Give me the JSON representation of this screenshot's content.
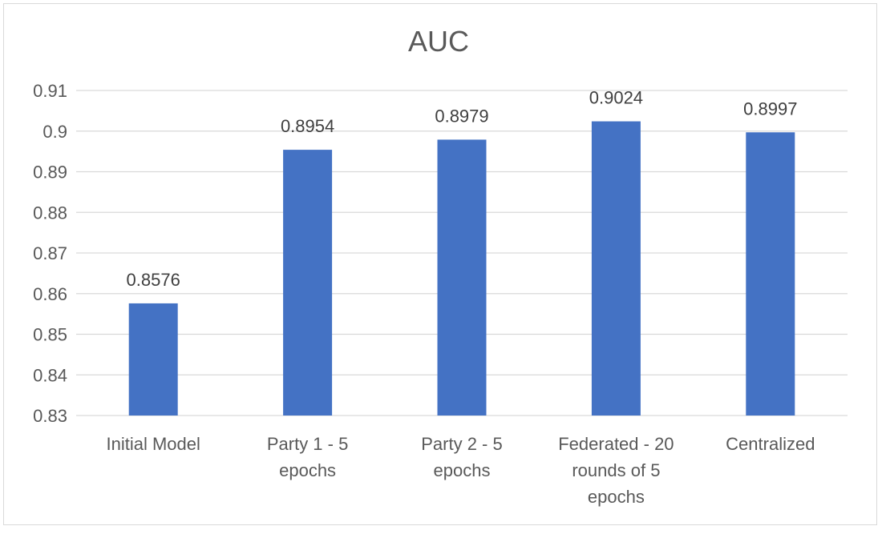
{
  "chart_data": {
    "type": "bar",
    "title": "AUC",
    "xlabel": "",
    "ylabel": "",
    "categories": [
      [
        "Initial Model"
      ],
      [
        "Party 1 - 5",
        "epochs"
      ],
      [
        "Party 2 - 5",
        "epochs"
      ],
      [
        "Federated - 20",
        "rounds of 5",
        "epochs"
      ],
      [
        "Centralized"
      ]
    ],
    "values": [
      0.8576,
      0.8954,
      0.8979,
      0.9024,
      0.8997
    ],
    "data_labels": [
      "0.8576",
      "0.8954",
      "0.8979",
      "0.9024",
      "0.8997"
    ],
    "ylim": [
      0.83,
      0.91
    ],
    "yticks": [
      "0.83",
      "0.84",
      "0.85",
      "0.86",
      "0.87",
      "0.88",
      "0.89",
      "0.9",
      "0.91"
    ],
    "grid": true,
    "legend": "none",
    "colors": {
      "bar": "#4472c4",
      "grid": "#d9d9d9",
      "text": "#595959",
      "label": "#404040"
    }
  }
}
